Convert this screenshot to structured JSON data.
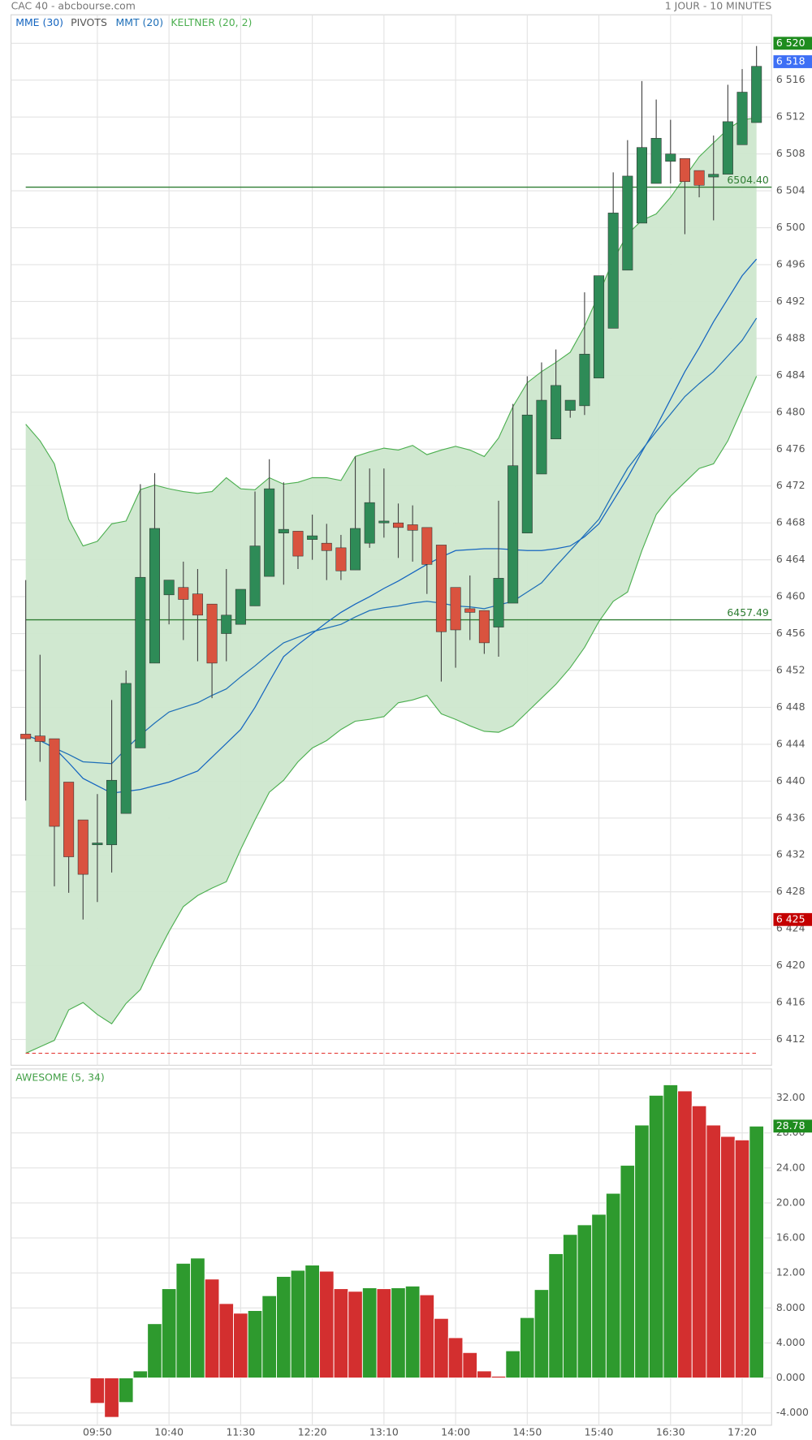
{
  "chart_data": [
    {
      "type": "candlestick",
      "source": "CAC 40 - abcbourse.com",
      "period": "1 JOUR - 10 MINUTES",
      "categories": [
        null,
        null,
        null,
        null,
        null,
        "09:50",
        null,
        null,
        null,
        null,
        "10:40",
        null,
        null,
        null,
        null,
        "11:30",
        null,
        null,
        null,
        null,
        "12:20",
        null,
        null,
        null,
        null,
        "13:10",
        null,
        null,
        null,
        null,
        "14:00",
        null,
        null,
        null,
        null,
        "14:50",
        null,
        null,
        null,
        null,
        "15:40",
        null,
        null,
        null,
        null,
        "16:30",
        null,
        null,
        null,
        null,
        "17:20",
        null
      ],
      "open": [
        6445.1,
        6444.9,
        6444.6,
        6439.9,
        6435.8,
        6433.1,
        6433.1,
        6436.5,
        6443.6,
        6452.8,
        6460.2,
        6461.0,
        6460.3,
        6459.2,
        6456.0,
        6457.0,
        6459.0,
        6462.2,
        6466.9,
        6467.1,
        6466.2,
        6465.8,
        6465.3,
        6462.9,
        6465.8,
        6468.0,
        6468.0,
        6467.8,
        6467.5,
        6465.6,
        6461.0,
        6458.7,
        6458.5,
        6456.7,
        6459.3,
        6466.9,
        6473.3,
        6477.1,
        6480.2,
        6480.7,
        6483.7,
        6489.1,
        6495.4,
        6500.5,
        6504.8,
        6507.2,
        6507.5,
        6506.2,
        6505.5,
        6505.8,
        6509.0,
        6511.4
      ],
      "high": [
        6461.8,
        6453.7,
        6444.6,
        6439.9,
        6435.8,
        6438.6,
        6448.8,
        6452.0,
        6472.2,
        6473.4,
        6461.8,
        6463.8,
        6463.0,
        6459.2,
        6463.0,
        6460.8,
        6471.4,
        6474.9,
        6472.4,
        6467.1,
        6468.9,
        6467.9,
        6466.7,
        6475.2,
        6473.9,
        6473.9,
        6470.1,
        6469.9,
        6467.5,
        6465.6,
        6461.0,
        6462.3,
        6458.5,
        6470.4,
        6480.9,
        6483.9,
        6485.4,
        6486.8,
        6481.3,
        6493.0,
        6494.8,
        6506.0,
        6509.5,
        6515.9,
        6513.9,
        6511.7,
        6507.5,
        6506.2,
        6510.0,
        6515.5,
        6517.2,
        6519.7
      ],
      "low": [
        6437.9,
        6442.1,
        6428.6,
        6427.9,
        6425.0,
        6426.9,
        6430.1,
        6436.5,
        6443.6,
        6452.8,
        6457.0,
        6455.3,
        6453.0,
        6449.0,
        6453.0,
        6457.0,
        6459.0,
        6462.2,
        6461.3,
        6463.0,
        6464.0,
        6461.8,
        6461.8,
        6462.9,
        6465.3,
        6466.4,
        6464.2,
        6463.8,
        6460.3,
        6450.8,
        6452.3,
        6455.3,
        6453.8,
        6453.5,
        6459.3,
        6466.9,
        6473.3,
        6477.1,
        6479.4,
        6479.7,
        6483.7,
        6489.1,
        6495.4,
        6500.5,
        6504.8,
        6504.8,
        6499.3,
        6503.3,
        6500.8,
        6505.8,
        6509.0,
        6511.4
      ],
      "close": [
        6444.6,
        6444.3,
        6435.1,
        6431.8,
        6429.9,
        6433.3,
        6440.1,
        6450.6,
        6462.1,
        6467.4,
        6461.8,
        6459.7,
        6458.0,
        6452.8,
        6458.0,
        6460.8,
        6465.5,
        6471.7,
        6467.3,
        6464.4,
        6466.6,
        6465.0,
        6462.8,
        6467.4,
        6470.2,
        6468.2,
        6467.5,
        6467.2,
        6463.5,
        6456.2,
        6456.4,
        6458.3,
        6455.0,
        6462.0,
        6474.2,
        6479.7,
        6481.3,
        6482.9,
        6481.3,
        6486.3,
        6494.8,
        6501.6,
        6505.6,
        6508.7,
        6509.7,
        6508.0,
        6505.0,
        6504.6,
        6505.8,
        6511.5,
        6514.7,
        6517.5
      ],
      "up_color": "#2e8b57",
      "down_color": "#d9533f",
      "series": [
        {
          "name": "MME (30)",
          "color": "#1565c0",
          "values": [
            6445.0,
            6444.4,
            6443.6,
            6442.0,
            6440.3,
            6439.5,
            6438.7,
            6438.9,
            6439.1,
            6439.5,
            6439.9,
            6440.5,
            6441.1,
            6442.6,
            6444.1,
            6445.6,
            6448.0,
            6450.8,
            6453.5,
            6454.8,
            6456.0,
            6457.2,
            6458.3,
            6459.2,
            6460.0,
            6460.9,
            6461.7,
            6462.6,
            6463.5,
            6464.3,
            6465.0,
            6465.1,
            6465.2,
            6465.2,
            6465.1,
            6465.0,
            6465.0,
            6465.2,
            6465.5,
            6466.5,
            6467.9,
            6470.4,
            6472.9,
            6475.7,
            6478.4,
            6481.4,
            6484.4,
            6487.0,
            6489.8,
            6492.3,
            6494.8,
            6496.6
          ]
        },
        {
          "name": "MMT (20)",
          "color": "#1e6fb8",
          "values": [
            6445.0,
            6444.4,
            6443.6,
            6442.9,
            6442.1,
            6442.0,
            6441.9,
            6443.5,
            6445.0,
            6446.3,
            6447.5,
            6448.0,
            6448.5,
            6449.3,
            6450.0,
            6451.3,
            6452.5,
            6453.8,
            6455.0,
            6455.6,
            6456.2,
            6456.6,
            6457.0,
            6457.8,
            6458.5,
            6458.8,
            6459.0,
            6459.3,
            6459.5,
            6459.3,
            6459.0,
            6458.9,
            6458.7,
            6459.1,
            6459.5,
            6460.5,
            6461.5,
            6463.3,
            6465.0,
            6466.7,
            6468.4,
            6471.2,
            6473.9,
            6475.9,
            6477.9,
            6479.8,
            6481.7,
            6483.1,
            6484.4,
            6486.1,
            6487.8,
            6490.2
          ]
        }
      ],
      "keltner": {
        "name": "KELTNER (20, 2)",
        "color": "#4caf50",
        "fill": "#cde7cd",
        "upper": [
          6478.7,
          6476.9,
          6474.4,
          6468.4,
          6465.5,
          6466.0,
          6467.9,
          6468.2,
          6471.6,
          6472.1,
          6471.7,
          6471.4,
          6471.2,
          6471.4,
          6472.9,
          6471.7,
          6471.6,
          6472.9,
          6472.2,
          6472.4,
          6472.9,
          6472.9,
          6472.6,
          6475.2,
          6475.7,
          6476.1,
          6475.9,
          6476.4,
          6475.4,
          6475.9,
          6476.3,
          6475.9,
          6475.2,
          6477.2,
          6480.6,
          6483.2,
          6484.4,
          6485.4,
          6486.5,
          6489.3,
          6492.8,
          6496.5,
          6499.3,
          6500.8,
          6501.5,
          6503.3,
          6505.5,
          6507.7,
          6509.2,
          6510.7,
          6511.7,
          6511.9
        ],
        "lower": [
          6410.5,
          6411.2,
          6411.9,
          6415.2,
          6416.0,
          6414.7,
          6413.7,
          6415.9,
          6417.4,
          6420.7,
          6423.7,
          6426.4,
          6427.6,
          6428.4,
          6429.1,
          6432.6,
          6435.8,
          6438.8,
          6440.1,
          6442.1,
          6443.6,
          6444.4,
          6445.6,
          6446.5,
          6446.7,
          6447.0,
          6448.5,
          6448.8,
          6449.3,
          6447.3,
          6446.7,
          6446.0,
          6445.4,
          6445.3,
          6446.0,
          6447.5,
          6449.0,
          6450.5,
          6452.3,
          6454.5,
          6457.3,
          6459.5,
          6460.5,
          6465.0,
          6468.9,
          6470.9,
          6472.4,
          6473.9,
          6474.4,
          6476.9,
          6480.4,
          6483.9
        ]
      },
      "pivots": {
        "name": "PIVOTS",
        "color": "#2e7d32",
        "levels": [
          {
            "value": 6504.4,
            "label": "6504.40"
          },
          {
            "value": 6457.49,
            "label": "6457.49"
          }
        ]
      },
      "dashed_level": {
        "value": 6410.5,
        "color": "#e53935"
      },
      "badges": [
        {
          "value": 6520,
          "label": "6 520",
          "color": "#1e8c1e"
        },
        {
          "value": 6518,
          "label": "6 518",
          "color": "#3d6ff5"
        },
        {
          "value": 6425,
          "label": "6 425",
          "color": "#c40000"
        }
      ],
      "ylim": [
        6409.2,
        6520
      ],
      "yticks": [
        {
          "value": 6412,
          "label": "6 412"
        },
        {
          "value": 6416,
          "label": "6 416"
        },
        {
          "value": 6420,
          "label": "6 420"
        },
        {
          "value": 6424,
          "label": "6 424"
        },
        {
          "value": 6428,
          "label": "6 428"
        },
        {
          "value": 6432,
          "label": "6 432"
        },
        {
          "value": 6436,
          "label": "6 436"
        },
        {
          "value": 6440,
          "label": "6 440"
        },
        {
          "value": 6444,
          "label": "6 444"
        },
        {
          "value": 6448,
          "label": "6 448"
        },
        {
          "value": 6452,
          "label": "6 452"
        },
        {
          "value": 6456,
          "label": "6 456"
        },
        {
          "value": 6460,
          "label": "6 460"
        },
        {
          "value": 6464,
          "label": "6 464"
        },
        {
          "value": 6468,
          "label": "6 468"
        },
        {
          "value": 6472,
          "label": "6 472"
        },
        {
          "value": 6476,
          "label": "6 476"
        },
        {
          "value": 6480,
          "label": "6 480"
        },
        {
          "value": 6484,
          "label": "6 484"
        },
        {
          "value": 6488,
          "label": "6 488"
        },
        {
          "value": 6492,
          "label": "6 492"
        },
        {
          "value": 6496,
          "label": "6 496"
        },
        {
          "value": 6500,
          "label": "6 500"
        },
        {
          "value": 6504,
          "label": "6 504"
        },
        {
          "value": 6508,
          "label": "6 508"
        },
        {
          "value": 6512,
          "label": "6 512"
        },
        {
          "value": 6516,
          "label": "6 516"
        },
        {
          "value": 6520,
          "label": "6 520"
        }
      ],
      "grid": true
    },
    {
      "type": "bar",
      "title": "AWESOME (5, 34)",
      "title_color": "#43a047",
      "values": [
        null,
        null,
        null,
        null,
        null,
        -2.9,
        -4.5,
        -2.8,
        0.8,
        6.2,
        10.2,
        13.1,
        13.7,
        11.3,
        8.5,
        7.4,
        7.7,
        9.4,
        11.6,
        12.3,
        12.9,
        12.2,
        10.2,
        9.9,
        10.3,
        10.2,
        10.3,
        10.5,
        9.5,
        6.8,
        4.6,
        2.9,
        0.8,
        0.2,
        3.1,
        6.9,
        10.1,
        14.2,
        16.4,
        17.5,
        18.7,
        21.1,
        24.3,
        28.9,
        32.3,
        33.5,
        32.8,
        31.1,
        28.9,
        27.6,
        27.2,
        28.78
      ],
      "up_color": "#2e9a2e",
      "down_color": "#d32f2f",
      "badge": {
        "value": 28.78,
        "label": "28.78",
        "color": "#1e8c1e"
      },
      "ylim": [
        -5.4,
        35
      ],
      "yticks": [
        {
          "value": -4,
          "label": "-4.000"
        },
        {
          "value": 0,
          "label": "0.000"
        },
        {
          "value": 4,
          "label": "4.000"
        },
        {
          "value": 8,
          "label": "8.000"
        },
        {
          "value": 12,
          "label": "12.00"
        },
        {
          "value": 16,
          "label": "16.00"
        },
        {
          "value": 20,
          "label": "20.00"
        },
        {
          "value": 24,
          "label": "24.00"
        },
        {
          "value": 28,
          "label": "28.00"
        },
        {
          "value": 32,
          "label": "32.00"
        }
      ],
      "grid": true
    }
  ]
}
